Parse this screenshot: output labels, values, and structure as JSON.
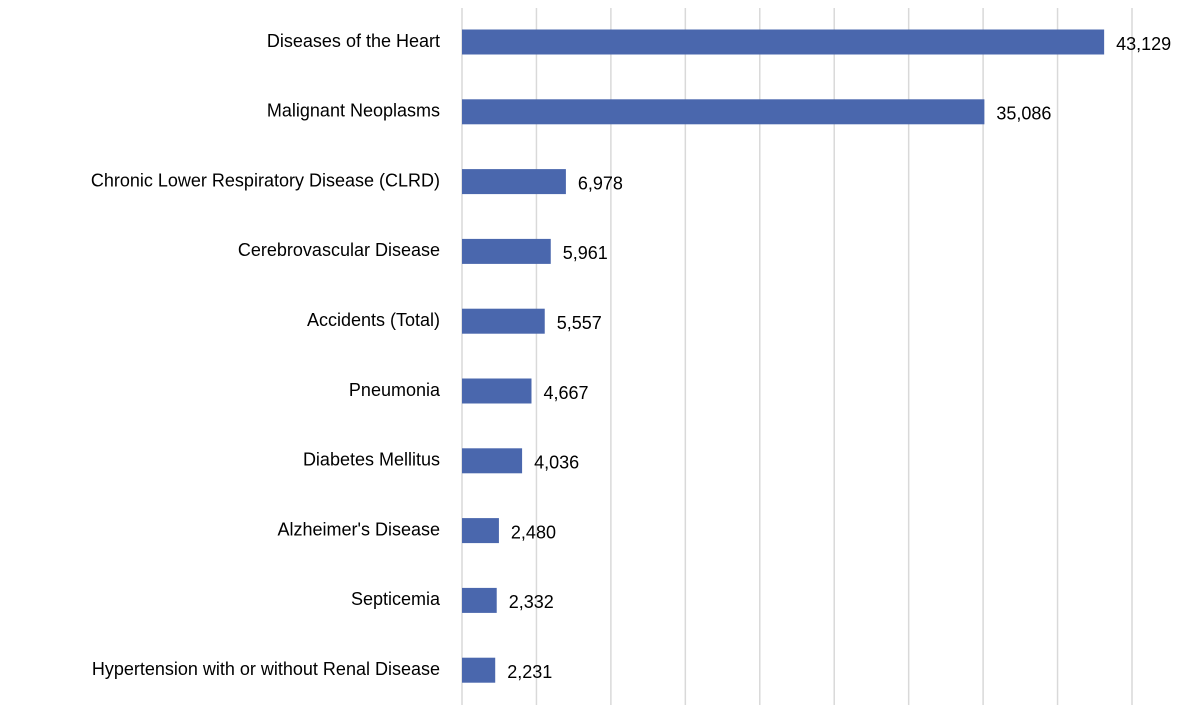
{
  "chart_data": {
    "type": "bar",
    "orientation": "horizontal",
    "categories": [
      "Diseases of the Heart",
      "Malignant Neoplasms",
      "Chronic Lower Respiratory Disease (CLRD)",
      "Cerebrovascular Disease",
      "Accidents (Total)",
      "Pneumonia",
      "Diabetes Mellitus",
      "Alzheimer's Disease",
      "Septicemia",
      "Hypertension with or without Renal Disease"
    ],
    "values": [
      43129,
      35086,
      6978,
      5961,
      5557,
      4667,
      4036,
      2480,
      2332,
      2231
    ],
    "value_labels": [
      "43,129",
      "35,086",
      "6,978",
      "5,961",
      "5,557",
      "4,667",
      "4,036",
      "2,480",
      "2,332",
      "2,231"
    ],
    "color": "#4a67ad",
    "xlim": [
      0,
      45000
    ],
    "xticks": [
      0,
      5000,
      10000,
      15000,
      20000,
      25000,
      30000,
      35000,
      40000,
      45000
    ],
    "grid": true
  }
}
